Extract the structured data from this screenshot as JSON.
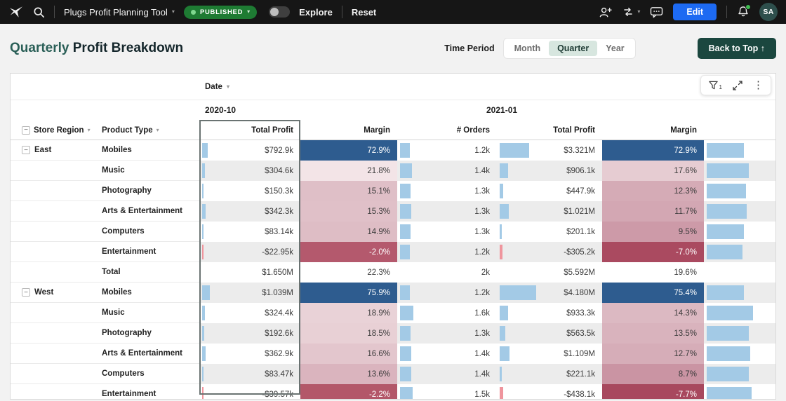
{
  "navbar": {
    "title": "Plugs Profit Planning Tool",
    "published_label": "PUBLISHED",
    "explore_label": "Explore",
    "reset_label": "Reset",
    "edit_label": "Edit",
    "avatar_initials": "SA"
  },
  "header": {
    "title_accent": "Quarterly",
    "title_rest": " Profit Breakdown",
    "time_period_label": "Time Period",
    "options": [
      "Month",
      "Quarter",
      "Year"
    ],
    "selected": "Quarter",
    "back_to_top": "Back to Top ↑"
  },
  "icons": {
    "caret": "▾",
    "collapse": "−",
    "kebab": "⋮"
  },
  "colors": {
    "page_bg": "#f2f2f2",
    "nav_bg": "#161616",
    "green": "#1e7b33",
    "green_dot": "#7fd78f",
    "notif_green": "#3fbc51",
    "blue_btn": "#1d6af2",
    "avatar_bg": "#2e4f4c",
    "teal_btn": "#1b473f",
    "title_accent": "#2a5f57",
    "title_dark": "#14262b",
    "seg_sel": "#d7e6df",
    "card_border": "#d9d9d9",
    "alt_row": "#ececec",
    "bar_blue": "#a3cae6",
    "bar_red": "#ef959d",
    "sel_border": "#6a7372"
  },
  "table": {
    "date_label": "Date",
    "filter_count": "1",
    "groups": [
      "2020-10",
      "2021-01"
    ],
    "col_headers": {
      "region": "Store Region",
      "product": "Product Type",
      "cols": [
        "Total Profit",
        "Margin",
        "# Orders",
        "Total Profit",
        "Margin"
      ]
    },
    "rows": [
      {
        "region": "East",
        "product": "Mobiles",
        "c": [
          {
            "t": "$792.9k",
            "b": 8
          },
          {
            "t": "72.9%",
            "g": "#2e5c8f",
            "w": 1
          },
          {
            "t": "1.2k",
            "b": 14
          },
          {
            "t": "$3.321M",
            "b": 42
          },
          {
            "t": "72.9%",
            "g": "#2e5c8f",
            "w": 1
          },
          {
            "b": 53
          }
        ]
      },
      {
        "product": "Music",
        "c": [
          {
            "t": "$304.6k",
            "b": 4
          },
          {
            "t": "21.8%",
            "g": "#f3e4e7"
          },
          {
            "t": "1.4k",
            "b": 17
          },
          {
            "t": "$906.1k",
            "b": 12
          },
          {
            "t": "17.6%",
            "g": "#e6ccd2"
          },
          {
            "b": 60
          }
        ]
      },
      {
        "product": "Photography",
        "c": [
          {
            "t": "$150.3k",
            "b": 2
          },
          {
            "t": "15.1%",
            "g": "#dfbfc7"
          },
          {
            "t": "1.3k",
            "b": 15
          },
          {
            "t": "$447.9k",
            "b": 5
          },
          {
            "t": "12.3%",
            "g": "#d5abb6"
          },
          {
            "b": 56
          }
        ]
      },
      {
        "product": "Arts & Entertainment",
        "c": [
          {
            "t": "$342.3k",
            "b": 5
          },
          {
            "t": "15.3%",
            "g": "#e0c0c8"
          },
          {
            "t": "1.3k",
            "b": 16
          },
          {
            "t": "$1.021M",
            "b": 13
          },
          {
            "t": "11.7%",
            "g": "#d3a7b3"
          },
          {
            "b": 57
          }
        ]
      },
      {
        "product": "Computers",
        "c": [
          {
            "t": "$83.14k",
            "b": 2
          },
          {
            "t": "14.9%",
            "g": "#debdc5"
          },
          {
            "t": "1.3k",
            "b": 15
          },
          {
            "t": "$201.1k",
            "b": 3
          },
          {
            "t": "9.5%",
            "g": "#cd9aa8"
          },
          {
            "b": 53
          }
        ]
      },
      {
        "product": "Entertainment",
        "c": [
          {
            "t": "-$22.95k",
            "b": 2,
            "r": 1
          },
          {
            "t": "-2.0%",
            "g": "#b4596d",
            "w": 1
          },
          {
            "t": "1.2k",
            "b": 14
          },
          {
            "t": "-$305.2k",
            "b": 4,
            "r": 1
          },
          {
            "t": "-7.0%",
            "g": "#aa4a60",
            "w": 1
          },
          {
            "b": 51
          }
        ]
      },
      {
        "product": "Total",
        "c": [
          {
            "t": "$1.650M"
          },
          {
            "t": "22.3%"
          },
          {
            "t": "2k"
          },
          {
            "t": "$5.592M"
          },
          {
            "t": "19.6%"
          },
          {}
        ]
      },
      {
        "region": "West",
        "product": "Mobiles",
        "c": [
          {
            "t": "$1.039M",
            "b": 11
          },
          {
            "t": "75.9%",
            "g": "#2e5c8f",
            "w": 1
          },
          {
            "t": "1.2k",
            "b": 14
          },
          {
            "t": "$4.180M",
            "b": 52
          },
          {
            "t": "75.4%",
            "g": "#2e5c8f",
            "w": 1
          },
          {
            "b": 53
          }
        ]
      },
      {
        "product": "Music",
        "c": [
          {
            "t": "$324.4k",
            "b": 4
          },
          {
            "t": "18.9%",
            "g": "#e9d2d7"
          },
          {
            "t": "1.6k",
            "b": 19
          },
          {
            "t": "$933.3k",
            "b": 12
          },
          {
            "t": "14.3%",
            "g": "#dcb9c2"
          },
          {
            "b": 66
          }
        ]
      },
      {
        "product": "Photography",
        "c": [
          {
            "t": "$192.6k",
            "b": 3
          },
          {
            "t": "18.5%",
            "g": "#e8d0d5"
          },
          {
            "t": "1.3k",
            "b": 15
          },
          {
            "t": "$563.5k",
            "b": 8
          },
          {
            "t": "13.5%",
            "g": "#d9b3bd"
          },
          {
            "b": 60
          }
        ]
      },
      {
        "product": "Arts & Entertainment",
        "c": [
          {
            "t": "$362.9k",
            "b": 5
          },
          {
            "t": "16.6%",
            "g": "#e3c6cd"
          },
          {
            "t": "1.4k",
            "b": 16
          },
          {
            "t": "$1.109M",
            "b": 14
          },
          {
            "t": "12.7%",
            "g": "#d6adb8"
          },
          {
            "b": 62
          }
        ]
      },
      {
        "product": "Computers",
        "c": [
          {
            "t": "$83.47k",
            "b": 2
          },
          {
            "t": "13.6%",
            "g": "#dab4be"
          },
          {
            "t": "1.4k",
            "b": 16
          },
          {
            "t": "$221.1k",
            "b": 3
          },
          {
            "t": "8.7%",
            "g": "#ca94a3"
          },
          {
            "b": 60
          }
        ]
      },
      {
        "product": "Entertainment",
        "c": [
          {
            "t": "-$39.57k",
            "b": 2,
            "r": 1
          },
          {
            "t": "-2.2%",
            "g": "#b35769",
            "w": 1
          },
          {
            "t": "1.5k",
            "b": 18
          },
          {
            "t": "-$438.1k",
            "b": 5,
            "r": 1
          },
          {
            "t": "-7.7%",
            "g": "#a8485e",
            "w": 1
          },
          {
            "b": 64
          }
        ]
      }
    ]
  }
}
